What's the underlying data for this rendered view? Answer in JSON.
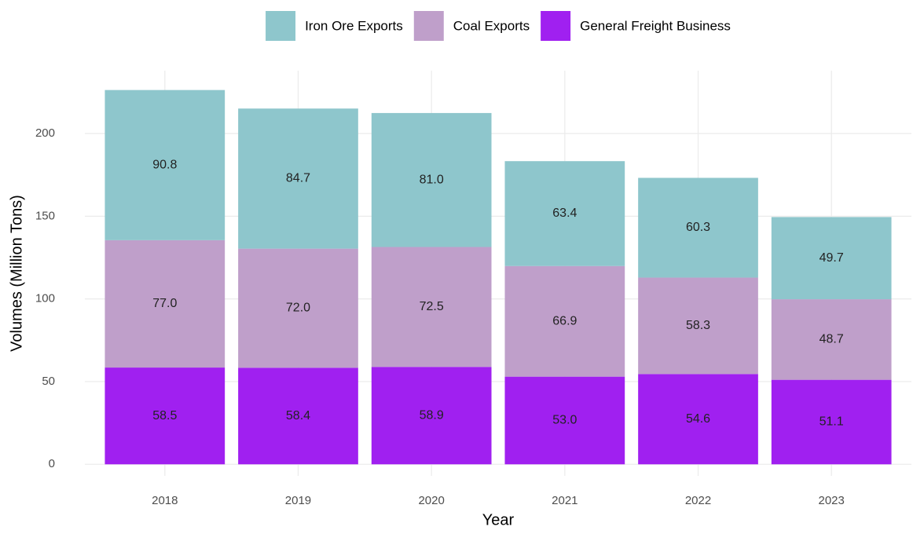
{
  "chart_data": {
    "type": "stacked_bar",
    "categories": [
      "2018",
      "2019",
      "2020",
      "2021",
      "2022",
      "2023"
    ],
    "series": [
      {
        "name": "Iron Ore Exports",
        "color": "#8ec6cc",
        "values": [
          90.8,
          84.7,
          81.0,
          63.4,
          60.3,
          49.7
        ],
        "value_labels": [
          "90.8",
          "84.7",
          "81.0",
          "63.4",
          "60.3",
          "49.7"
        ]
      },
      {
        "name": "Coal Exports",
        "color": "#bf9fca",
        "values": [
          77.0,
          72.0,
          72.5,
          66.9,
          58.3,
          48.7
        ],
        "value_labels": [
          "77.0",
          "72.0",
          "72.5",
          "66.9",
          "58.3",
          "48.7"
        ]
      },
      {
        "name": "General Freight Business",
        "color": "#a020f0",
        "values": [
          58.5,
          58.4,
          58.9,
          53.0,
          54.6,
          51.1
        ],
        "value_labels": [
          "58.5",
          "58.4",
          "58.9",
          "53.0",
          "54.6",
          "51.1"
        ]
      }
    ],
    "x_label": "Year",
    "y_label": "Volumes (Million Tons)",
    "ylim": [
      -7,
      238
    ],
    "yticks": [
      0,
      50,
      100,
      150,
      200
    ],
    "grid": true,
    "legend": "top"
  }
}
